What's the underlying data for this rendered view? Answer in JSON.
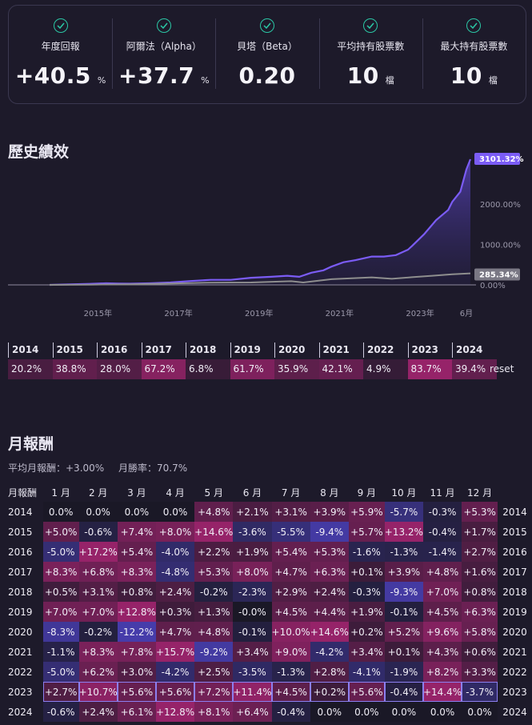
{
  "stats": [
    {
      "label": "年度回報",
      "value": "+40.5",
      "unit": "%"
    },
    {
      "label": "阿爾法（Alpha）",
      "value": "+37.7",
      "unit": "%"
    },
    {
      "label": "貝塔（Beta）",
      "value": "0.20",
      "unit": ""
    },
    {
      "label": "平均持有股票數",
      "value": "10",
      "unit": "檔"
    },
    {
      "label": "最大持有股票數",
      "value": "10",
      "unit": "檔"
    }
  ],
  "history": {
    "title": "歷史績效",
    "badges": {
      "strategy": "3101.32%",
      "benchmark": "285.34%"
    },
    "y_ticks": [
      "2000.00%",
      "1000.00%",
      "0.00%"
    ],
    "x_ticks": [
      "2015年",
      "2017年",
      "2019年",
      "2021年",
      "2023年",
      "6月"
    ]
  },
  "chart_data": {
    "type": "area",
    "title": "",
    "xlabel": "",
    "ylabel": "",
    "ylim": [
      -60,
      3200
    ],
    "series": [
      {
        "color": "#7b5cf5",
        "x": [
          2014.0,
          2014.5,
          2015.0,
          2015.4,
          2015.7,
          2016.0,
          2016.5,
          2017.0,
          2017.5,
          2018.0,
          2018.5,
          2019.0,
          2019.5,
          2019.9,
          2020.2,
          2020.5,
          2020.8,
          2021.0,
          2021.3,
          2021.6,
          2022.0,
          2022.3,
          2022.6,
          2022.9,
          2023.0,
          2023.3,
          2023.6,
          2023.9,
          2024.0,
          2024.2,
          2024.35,
          2024.45
        ],
        "y": [
          0,
          12,
          25,
          40,
          32,
          30,
          40,
          60,
          95,
          125,
          125,
          175,
          200,
          225,
          200,
          300,
          360,
          450,
          560,
          610,
          700,
          700,
          735,
          870,
          960,
          1250,
          1600,
          1850,
          2050,
          2300,
          2850,
          3101.32
        ]
      },
      {
        "color": "#8e8e8e",
        "x": [
          2014.0,
          2015.0,
          2016.0,
          2017.0,
          2018.0,
          2019.0,
          2020.0,
          2020.3,
          2021.0,
          2022.0,
          2022.5,
          2023.0,
          2023.5,
          2024.0,
          2024.45
        ],
        "y": [
          0,
          5,
          15,
          35,
          55,
          60,
          90,
          60,
          140,
          185,
          150,
          190,
          225,
          260,
          285.34
        ]
      }
    ]
  },
  "yearly": {
    "years": [
      "2014",
      "2015",
      "2016",
      "2017",
      "2018",
      "2019",
      "2020",
      "2021",
      "2022",
      "2023",
      "2024"
    ],
    "values": [
      "20.2%",
      "38.8%",
      "28.0%",
      "67.2%",
      "6.8%",
      "61.7%",
      "35.9%",
      "42.1%",
      "4.9%",
      "83.7%",
      "39.4%"
    ],
    "reset_label": "reset"
  },
  "monthly": {
    "title": "月報酬",
    "avg_label": "平均月報酬：+3.00%",
    "win_label": "月勝率：70.7%",
    "header": [
      "月報酬",
      "1 月",
      "2 月",
      "3 月",
      "4 月",
      "5 月",
      "6 月",
      "7 月",
      "8 月",
      "9 月",
      "10 月",
      "11 月",
      "12 月"
    ],
    "rows": [
      {
        "year": "2014",
        "values": [
          "0.0%",
          "0.0%",
          "0.0%",
          "0.0%",
          "+4.8%",
          "+2.1%",
          "+3.1%",
          "+3.9%",
          "+5.9%",
          "-5.7%",
          "-0.3%",
          "+5.3%"
        ]
      },
      {
        "year": "2015",
        "values": [
          "+5.0%",
          "-0.6%",
          "+7.4%",
          "+8.0%",
          "+14.6%",
          "-3.6%",
          "-5.5%",
          "-9.4%",
          "+5.7%",
          "+13.2%",
          "-0.4%",
          "+1.7%"
        ]
      },
      {
        "year": "2016",
        "values": [
          "-5.0%",
          "+17.2%",
          "+5.4%",
          "-4.0%",
          "+2.2%",
          "+1.9%",
          "+5.4%",
          "+5.3%",
          "-1.6%",
          "-1.3%",
          "-1.4%",
          "+2.7%"
        ]
      },
      {
        "year": "2017",
        "values": [
          "+8.3%",
          "+6.8%",
          "+8.3%",
          "-4.8%",
          "+5.3%",
          "+8.0%",
          "+4.7%",
          "+6.3%",
          "+0.1%",
          "+3.9%",
          "+4.8%",
          "+1.6%"
        ]
      },
      {
        "year": "2018",
        "values": [
          "+0.5%",
          "+3.1%",
          "+0.8%",
          "+2.4%",
          "-0.2%",
          "-2.3%",
          "+2.9%",
          "+2.4%",
          "-0.3%",
          "-9.3%",
          "+7.0%",
          "+0.8%"
        ]
      },
      {
        "year": "2019",
        "values": [
          "+7.0%",
          "+7.0%",
          "+12.8%",
          "+0.3%",
          "+1.3%",
          "-0.0%",
          "+4.5%",
          "+4.4%",
          "+1.9%",
          "-0.1%",
          "+4.5%",
          "+6.3%"
        ]
      },
      {
        "year": "2020",
        "values": [
          "-8.3%",
          "-0.2%",
          "-12.2%",
          "+4.7%",
          "+4.8%",
          "-0.1%",
          "+10.0%",
          "+14.6%",
          "+0.2%",
          "+5.2%",
          "+9.6%",
          "+5.8%"
        ]
      },
      {
        "year": "2021",
        "values": [
          "-1.1%",
          "+8.3%",
          "+7.8%",
          "+15.7%",
          "-9.2%",
          "+3.4%",
          "+9.0%",
          "-4.2%",
          "+3.4%",
          "+0.1%",
          "+4.3%",
          "+0.6%"
        ]
      },
      {
        "year": "2022",
        "values": [
          "-5.0%",
          "+6.2%",
          "+3.0%",
          "-4.2%",
          "+2.5%",
          "-3.5%",
          "-1.3%",
          "+2.8%",
          "-4.1%",
          "-1.9%",
          "+8.2%",
          "+3.3%"
        ]
      },
      {
        "year": "2023",
        "values": [
          "+2.7%",
          "+10.7%",
          "+5.6%",
          "+5.6%",
          "+7.2%",
          "+11.4%",
          "+4.5%",
          "+0.2%",
          "+5.6%",
          "-0.4%",
          "+14.4%",
          "-3.7%"
        ]
      },
      {
        "year": "2024",
        "values": [
          "-0.6%",
          "+2.4%",
          "+6.1%",
          "+12.8%",
          "+8.1%",
          "+6.4%",
          "-0.4%",
          "0.0%",
          "0.0%",
          "0.0%",
          "0.0%",
          "0.0%"
        ]
      }
    ],
    "highlight_year": "2023"
  }
}
